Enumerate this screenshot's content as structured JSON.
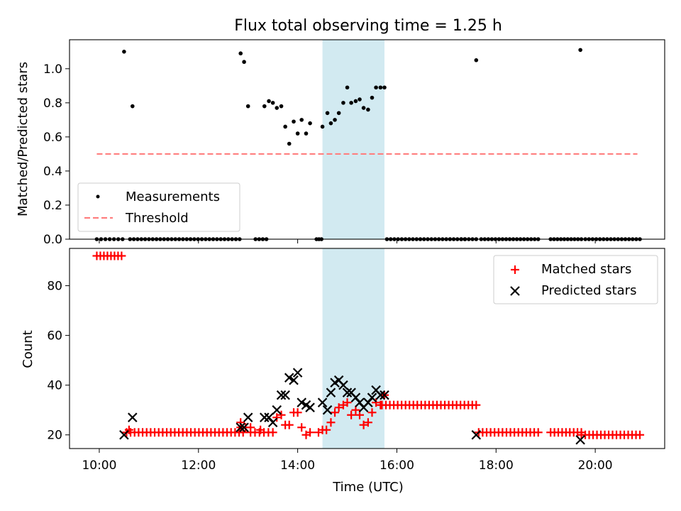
{
  "title": "Flux total observing time = 1.25 h",
  "chart_data": [
    {
      "type": "scatter",
      "panel": "top",
      "ylabel": "Matched/Predicted stars",
      "xlim": [
        9.4,
        21.4
      ],
      "ylim": [
        0,
        1.17
      ],
      "yticks": [
        0.0,
        0.2,
        0.4,
        0.6,
        0.8,
        1.0
      ],
      "ytick_labels": [
        "0.0",
        "0.2",
        "0.4",
        "0.6",
        "0.8",
        "1.0"
      ],
      "shaded_interval": [
        14.5,
        15.75
      ],
      "colors": {
        "measurements": "#000000",
        "threshold": "#ff7f7f",
        "shade": "#add8e6"
      },
      "legend": {
        "placement": "lower-left",
        "entries": [
          "Measurements",
          "Threshold"
        ]
      },
      "threshold": {
        "value": 0.5,
        "x_range": [
          9.95,
          20.85
        ]
      },
      "measurements": [
        [
          10.5,
          1.1
        ],
        [
          10.67,
          0.78
        ],
        [
          12.85,
          1.09
        ],
        [
          12.92,
          1.04
        ],
        [
          13.0,
          0.78
        ],
        [
          13.33,
          0.78
        ],
        [
          13.42,
          0.81
        ],
        [
          13.5,
          0.8
        ],
        [
          13.58,
          0.77
        ],
        [
          13.67,
          0.78
        ],
        [
          13.75,
          0.66
        ],
        [
          13.83,
          0.56
        ],
        [
          13.92,
          0.69
        ],
        [
          14.0,
          0.62
        ],
        [
          14.08,
          0.7
        ],
        [
          14.17,
          0.62
        ],
        [
          14.25,
          0.68
        ],
        [
          14.5,
          0.66
        ],
        [
          14.6,
          0.74
        ],
        [
          14.67,
          0.68
        ],
        [
          14.75,
          0.7
        ],
        [
          14.83,
          0.74
        ],
        [
          14.92,
          0.8
        ],
        [
          15.0,
          0.89
        ],
        [
          15.08,
          0.8
        ],
        [
          15.17,
          0.81
        ],
        [
          15.25,
          0.82
        ],
        [
          15.33,
          0.77
        ],
        [
          15.42,
          0.76
        ],
        [
          15.5,
          0.83
        ],
        [
          15.58,
          0.89
        ],
        [
          15.67,
          0.89
        ],
        [
          15.75,
          0.89
        ],
        [
          17.6,
          1.05
        ],
        [
          19.7,
          1.11
        ]
      ],
      "zero_runs": [
        [
          9.95,
          10.47,
          7
        ],
        [
          10.62,
          12.83,
          30
        ],
        [
          13.15,
          13.37,
          4
        ],
        [
          14.38,
          14.48,
          3
        ],
        [
          15.8,
          17.37,
          22
        ],
        [
          17.3,
          17.6,
          5
        ],
        [
          17.7,
          18.85,
          17
        ],
        [
          19.1,
          19.72,
          10
        ],
        [
          19.8,
          20.9,
          16
        ]
      ]
    },
    {
      "type": "scatter",
      "panel": "bottom",
      "xlabel": "Time (UTC)",
      "ylabel": "Count",
      "xlim": [
        9.4,
        21.4
      ],
      "ylim": [
        14.5,
        95
      ],
      "yticks": [
        20,
        40,
        60,
        80
      ],
      "ytick_labels": [
        "20",
        "40",
        "60",
        "80"
      ],
      "xticks": [
        10,
        12,
        14,
        16,
        18,
        20
      ],
      "xtick_labels": [
        "10:00",
        "12:00",
        "14:00",
        "16:00",
        "18:00",
        "20:00"
      ],
      "shaded_interval": [
        14.5,
        15.75
      ],
      "colors": {
        "matched": "#ff0000",
        "predicted": "#000000",
        "shade": "#add8e6"
      },
      "legend": {
        "placement": "top-right"
      },
      "series": [
        {
          "name": "Matched stars",
          "marker": "plus",
          "points": [
            [
              10.6,
              22
            ],
            [
              13.25,
              22
            ],
            [
              13.58,
              27
            ],
            [
              13.67,
              28
            ],
            [
              13.75,
              24
            ],
            [
              13.83,
              24
            ],
            [
              13.92,
              29
            ],
            [
              14.0,
              29
            ],
            [
              14.08,
              23
            ],
            [
              14.17,
              20
            ],
            [
              14.25,
              21
            ],
            [
              14.42,
              21
            ],
            [
              14.5,
              22
            ],
            [
              14.58,
              22
            ],
            [
              14.67,
              25
            ],
            [
              14.75,
              29
            ],
            [
              14.83,
              31
            ],
            [
              14.92,
              32
            ],
            [
              15.0,
              33
            ],
            [
              15.08,
              28
            ],
            [
              15.17,
              30
            ],
            [
              15.25,
              28
            ],
            [
              15.33,
              24
            ],
            [
              15.42,
              25
            ],
            [
              15.5,
              29
            ],
            [
              15.58,
              33
            ],
            [
              15.67,
              32
            ],
            [
              15.75,
              36
            ],
            [
              12.85,
              25
            ]
          ],
          "runs": [
            [
              9.95,
              10.45,
              92,
              8
            ],
            [
              10.55,
              12.9,
              21,
              30
            ],
            [
              12.85,
              13.05,
              23,
              3
            ],
            [
              13.05,
              13.5,
              21,
              6
            ],
            [
              15.7,
              17.6,
              32,
              25
            ],
            [
              17.65,
              18.85,
              21,
              16
            ],
            [
              19.1,
              19.72,
              21,
              9
            ],
            [
              19.72,
              20.9,
              20,
              16
            ]
          ]
        },
        {
          "name": "Predicted stars",
          "marker": "x",
          "points": [
            [
              10.5,
              20
            ],
            [
              10.67,
              27
            ],
            [
              12.85,
              23
            ],
            [
              12.92,
              23
            ],
            [
              13.0,
              27
            ],
            [
              13.33,
              27
            ],
            [
              13.42,
              27
            ],
            [
              13.5,
              25
            ],
            [
              13.58,
              30
            ],
            [
              13.67,
              36
            ],
            [
              13.75,
              36
            ],
            [
              13.83,
              43
            ],
            [
              13.92,
              42
            ],
            [
              14.0,
              45
            ],
            [
              14.08,
              33
            ],
            [
              14.17,
              32
            ],
            [
              14.25,
              31
            ],
            [
              14.5,
              33
            ],
            [
              14.6,
              30
            ],
            [
              14.67,
              37
            ],
            [
              14.75,
              41
            ],
            [
              14.83,
              42
            ],
            [
              14.92,
              40
            ],
            [
              15.0,
              37
            ],
            [
              15.08,
              37
            ],
            [
              15.17,
              35
            ],
            [
              15.25,
              33
            ],
            [
              15.33,
              31
            ],
            [
              15.42,
              33
            ],
            [
              15.5,
              35
            ],
            [
              15.58,
              38
            ],
            [
              15.67,
              36
            ],
            [
              15.75,
              36
            ],
            [
              17.6,
              20
            ],
            [
              19.7,
              18
            ]
          ]
        }
      ]
    }
  ]
}
